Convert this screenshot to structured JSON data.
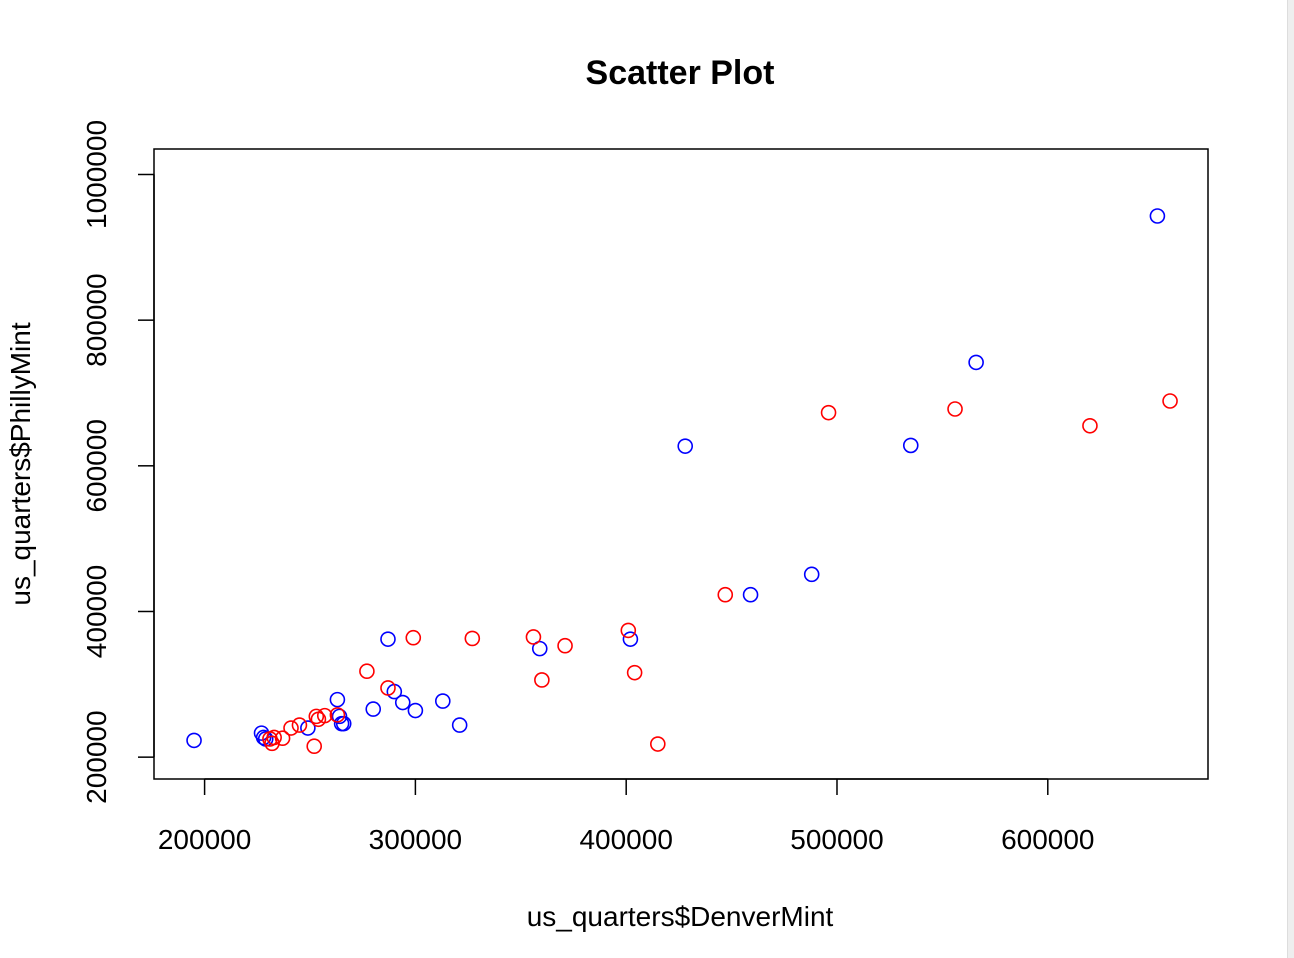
{
  "chart_data": {
    "type": "scatter",
    "title": "Scatter Plot",
    "xlabel": "us_quarters$DenverMint",
    "ylabel": "us_quarters$PhillyMint",
    "xlim": [
      176000,
      676000
    ],
    "ylim": [
      170000,
      1035000
    ],
    "x_ticks": [
      200000,
      300000,
      400000,
      500000,
      600000
    ],
    "y_ticks": [
      200000,
      400000,
      600000,
      800000,
      1000000
    ],
    "grid": false,
    "legend": false,
    "marker": "open-circle",
    "series": [
      {
        "color": "#0000ff",
        "points": [
          [
            195000,
            223000
          ],
          [
            227000,
            233000
          ],
          [
            228000,
            227000
          ],
          [
            229000,
            225000
          ],
          [
            249000,
            240000
          ],
          [
            263000,
            279000
          ],
          [
            264000,
            256000
          ],
          [
            265000,
            246000
          ],
          [
            266000,
            246000
          ],
          [
            280000,
            266000
          ],
          [
            287000,
            362000
          ],
          [
            290000,
            290000
          ],
          [
            294000,
            275000
          ],
          [
            300000,
            264000
          ],
          [
            313000,
            277000
          ],
          [
            321000,
            244000
          ],
          [
            359000,
            349000
          ],
          [
            402000,
            362000
          ],
          [
            428000,
            627000
          ],
          [
            459000,
            423000
          ],
          [
            488000,
            451000
          ],
          [
            535000,
            628000
          ],
          [
            566000,
            742000
          ],
          [
            652000,
            943000
          ]
        ]
      },
      {
        "color": "#ff0000",
        "points": [
          [
            231000,
            225000
          ],
          [
            232000,
            219000
          ],
          [
            233000,
            227000
          ],
          [
            237000,
            226000
          ],
          [
            241000,
            240000
          ],
          [
            245000,
            244000
          ],
          [
            252000,
            215000
          ],
          [
            253000,
            256000
          ],
          [
            254000,
            252000
          ],
          [
            257000,
            257000
          ],
          [
            263000,
            258000
          ],
          [
            277000,
            318000
          ],
          [
            287000,
            295000
          ],
          [
            299000,
            364000
          ],
          [
            327000,
            363000
          ],
          [
            356000,
            365000
          ],
          [
            360000,
            306000
          ],
          [
            371000,
            353000
          ],
          [
            401000,
            374000
          ],
          [
            404000,
            316000
          ],
          [
            415000,
            218000
          ],
          [
            447000,
            423000
          ],
          [
            496000,
            673000
          ],
          [
            556000,
            678000
          ],
          [
            620000,
            655000
          ],
          [
            658000,
            689000
          ]
        ]
      }
    ]
  }
}
